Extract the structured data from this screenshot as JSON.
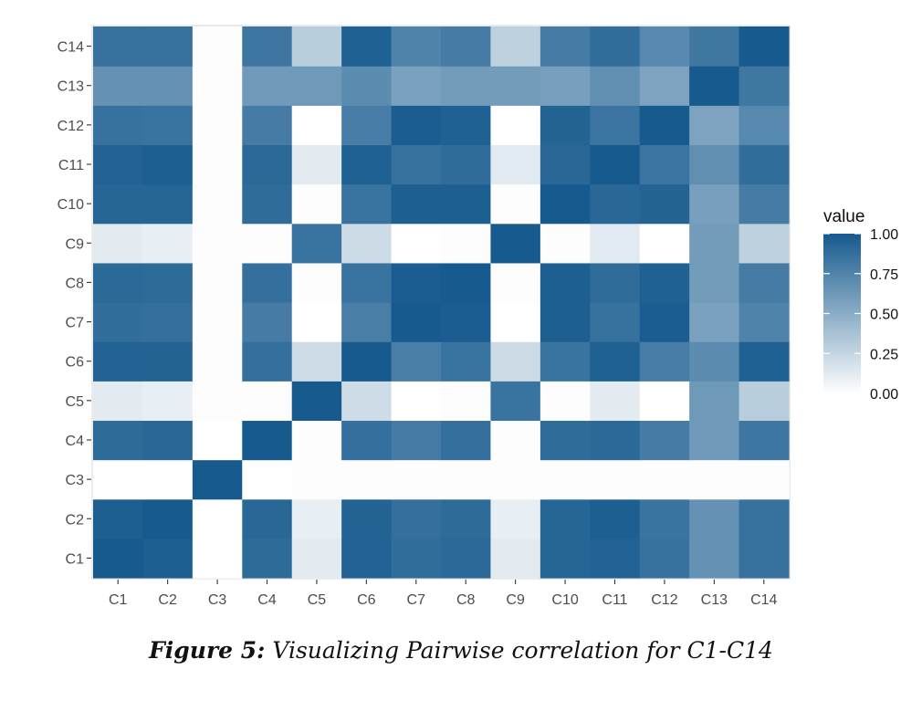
{
  "chart_data": {
    "type": "heatmap",
    "x_categories": [
      "C1",
      "C2",
      "C3",
      "C4",
      "C5",
      "C6",
      "C7",
      "C8",
      "C9",
      "C10",
      "C11",
      "C12",
      "C13",
      "C14"
    ],
    "y_categories": [
      "C1",
      "C2",
      "C3",
      "C4",
      "C5",
      "C6",
      "C7",
      "C8",
      "C9",
      "C10",
      "C11",
      "C12",
      "C13",
      "C14"
    ],
    "values": [
      [
        1.0,
        0.97,
        0.0,
        0.9,
        0.12,
        0.95,
        0.88,
        0.91,
        0.12,
        0.93,
        0.95,
        0.86,
        0.66,
        0.86
      ],
      [
        0.97,
        1.0,
        0.0,
        0.92,
        0.1,
        0.94,
        0.87,
        0.9,
        0.1,
        0.93,
        0.97,
        0.85,
        0.66,
        0.86
      ],
      [
        0.0,
        0.0,
        1.0,
        0.0,
        0.01,
        0.01,
        0.01,
        0.01,
        0.01,
        0.01,
        0.01,
        0.01,
        0.01,
        0.01
      ],
      [
        0.9,
        0.92,
        0.0,
        1.0,
        0.01,
        0.87,
        0.8,
        0.87,
        0.01,
        0.89,
        0.91,
        0.8,
        0.61,
        0.83
      ],
      [
        0.12,
        0.1,
        0.01,
        0.01,
        1.0,
        0.21,
        0.0,
        0.01,
        0.85,
        0.01,
        0.12,
        0.0,
        0.62,
        0.3
      ],
      [
        0.95,
        0.94,
        0.01,
        0.87,
        0.21,
        1.0,
        0.78,
        0.85,
        0.22,
        0.85,
        0.96,
        0.79,
        0.7,
        0.96
      ],
      [
        0.88,
        0.87,
        0.01,
        0.8,
        0.0,
        0.78,
        1.0,
        0.98,
        0.0,
        0.97,
        0.86,
        0.98,
        0.57,
        0.75
      ],
      [
        0.91,
        0.9,
        0.01,
        0.87,
        0.01,
        0.85,
        0.98,
        1.0,
        0.01,
        0.97,
        0.89,
        0.96,
        0.6,
        0.8
      ],
      [
        0.12,
        0.1,
        0.01,
        0.01,
        0.85,
        0.22,
        0.0,
        0.01,
        1.0,
        0.01,
        0.13,
        0.0,
        0.6,
        0.28
      ],
      [
        0.93,
        0.93,
        0.01,
        0.89,
        0.01,
        0.85,
        0.97,
        0.97,
        0.01,
        1.0,
        0.92,
        0.94,
        0.58,
        0.8
      ],
      [
        0.95,
        0.97,
        0.01,
        0.91,
        0.12,
        0.96,
        0.86,
        0.89,
        0.13,
        0.92,
        1.0,
        0.84,
        0.68,
        0.88
      ],
      [
        0.86,
        0.85,
        0.01,
        0.8,
        0.0,
        0.79,
        0.98,
        0.96,
        0.0,
        0.94,
        0.84,
        1.0,
        0.56,
        0.72
      ],
      [
        0.66,
        0.66,
        0.01,
        0.61,
        0.62,
        0.7,
        0.57,
        0.6,
        0.6,
        0.58,
        0.68,
        0.56,
        1.0,
        0.82
      ],
      [
        0.86,
        0.86,
        0.01,
        0.83,
        0.3,
        0.96,
        0.75,
        0.8,
        0.28,
        0.8,
        0.88,
        0.72,
        0.82,
        1.0
      ]
    ],
    "legend": {
      "title": "value",
      "ticks": [
        "1.00",
        "0.75",
        "0.50",
        "0.25",
        "0.00"
      ],
      "tick_values": [
        1.0,
        0.75,
        0.5,
        0.25,
        0.0
      ],
      "placement": "right"
    },
    "color_low": "#ffffff",
    "color_high": "#165a8e",
    "panel_background": "#ebebeb",
    "xlabel": "",
    "ylabel": ""
  },
  "caption": {
    "label": "Figure 5:",
    "text": "Visualizing Pairwise correlation for C1-C14"
  }
}
